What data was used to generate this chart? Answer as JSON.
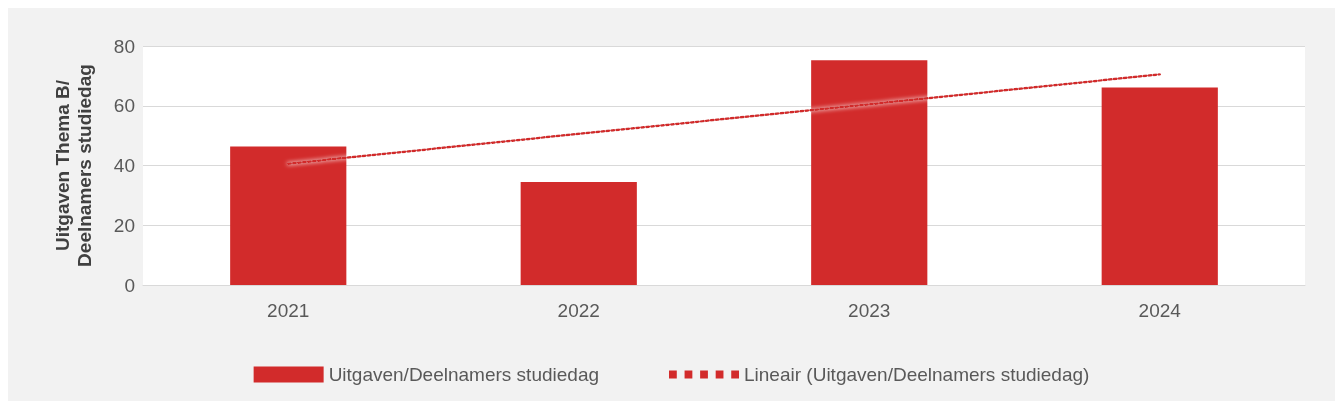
{
  "chart_data": {
    "type": "bar",
    "ylabel": "Uitgaven Thema B/\nDeelnamers studiedag",
    "categories": [
      "2021",
      "2022",
      "2023",
      "2024"
    ],
    "series": [
      {
        "name": "Uitgaven/Deelnamers studiedag",
        "color": "#d22b2b",
        "values": [
          46.4,
          34.5,
          75.2,
          66.1
        ]
      },
      {
        "name": "Lineair (Uitgaven/Deelnamers studiedag)",
        "type": "line",
        "color": "#d22b2b",
        "values": [
          40.6,
          50.6,
          60.5,
          70.5
        ],
        "line_style": "dotted",
        "marker": "none"
      }
    ],
    "ylim": [
      0,
      80
    ],
    "yticks": [
      0,
      20,
      40,
      60,
      80
    ],
    "grid": "y",
    "legend": "bottom"
  }
}
